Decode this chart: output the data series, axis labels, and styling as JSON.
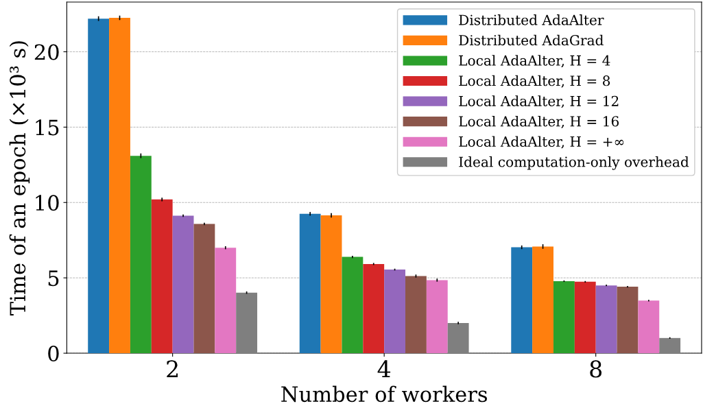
{
  "chart_data": {
    "type": "bar",
    "xlabel": "Number of workers",
    "ylabel": "Time of an epoch (×10³ s)",
    "categories": [
      "2",
      "4",
      "8"
    ],
    "series": [
      {
        "name": "Distributed AdaAlter",
        "color": "#1f77b4",
        "values": [
          22.2,
          9.25,
          7.03
        ],
        "errors": [
          0.15,
          0.12,
          0.12
        ]
      },
      {
        "name": "Distributed AdaGrad",
        "color": "#ff7f0e",
        "values": [
          22.25,
          9.15,
          7.08
        ],
        "errors": [
          0.15,
          0.15,
          0.15
        ]
      },
      {
        "name": "Local AdaAlter, H = 4",
        "color": "#2ca02c",
        "values": [
          13.1,
          6.39,
          4.78
        ],
        "errors": [
          0.15,
          0.07,
          0.05
        ]
      },
      {
        "name": "Local AdaAlter, H = 8",
        "color": "#d62728",
        "values": [
          10.2,
          5.92,
          4.74
        ],
        "errors": [
          0.12,
          0.07,
          0.05
        ]
      },
      {
        "name": "Local AdaAlter, H = 12",
        "color": "#9467bd",
        "values": [
          9.12,
          5.55,
          4.5
        ],
        "errors": [
          0.08,
          0.06,
          0.05
        ]
      },
      {
        "name": "Local AdaAlter, H = 16",
        "color": "#8c564b",
        "values": [
          8.58,
          5.12,
          4.41
        ],
        "errors": [
          0.08,
          0.1,
          0.05
        ]
      },
      {
        "name": "Local AdaAlter, H = +∞",
        "color": "#e377c2",
        "values": [
          7.0,
          4.85,
          3.49
        ],
        "errors": [
          0.1,
          0.1,
          0.05
        ]
      },
      {
        "name": "Ideal computation-only overhead",
        "color": "#7f7f7f",
        "values": [
          4.02,
          2.0,
          1.01
        ],
        "errors": [
          0.08,
          0.08,
          0.05
        ]
      }
    ],
    "ylim": [
      0,
      23.3
    ],
    "yticks": [
      0,
      5,
      10,
      15,
      20
    ],
    "grid": "y",
    "legend": "top right"
  }
}
